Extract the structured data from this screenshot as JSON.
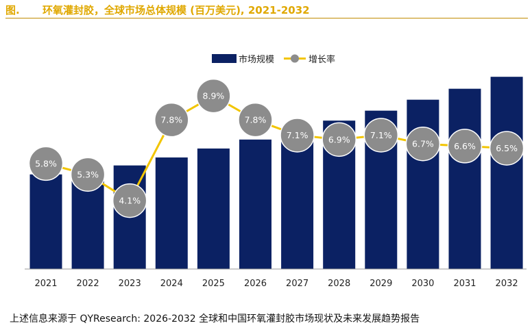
{
  "title": {
    "prefix": "图.",
    "text": "环氧灌封胶，全球市场总体规模 (百万美元), 2021-2032"
  },
  "source": "上述信息来源于 QYResearch: 2026-2032 全球和中国环氧灌封胶市场现状及未来发展趋势报告",
  "colors": {
    "bar": "#0b2163",
    "line": "#f2c500",
    "marker": "#8c8c8c",
    "title": "#e0a800"
  },
  "chart_data": {
    "type": "bar+line",
    "categories": [
      "2021",
      "2022",
      "2023",
      "2024",
      "2025",
      "2026",
      "2027",
      "2028",
      "2029",
      "2030",
      "2031",
      "2032"
    ],
    "series": [
      {
        "name": "市场规模",
        "type": "bar",
        "values": [
          47.5,
          50.0,
          52.0,
          56.0,
          60.5,
          65.0,
          69.5,
          74.5,
          79.5,
          85.0,
          90.5,
          96.5
        ]
      },
      {
        "name": "增长率",
        "type": "line",
        "unit": "%",
        "values": [
          5.8,
          5.3,
          4.1,
          7.8,
          8.9,
          7.8,
          7.1,
          6.9,
          7.1,
          6.7,
          6.6,
          6.5
        ],
        "labels": [
          "5.8%",
          "5.3%",
          "4.1%",
          "7.8%",
          "8.9%",
          "7.8%",
          "7.1%",
          "6.9%",
          "7.1%",
          "6.7%",
          "6.6%",
          "6.5%"
        ]
      }
    ],
    "legend": [
      "市场规模",
      "增长率"
    ],
    "legend_position": "top-center",
    "y_left_range": [
      0,
      100
    ],
    "y_right_range": [
      0,
      10
    ],
    "grid": false,
    "axis_labels_shown": false
  }
}
